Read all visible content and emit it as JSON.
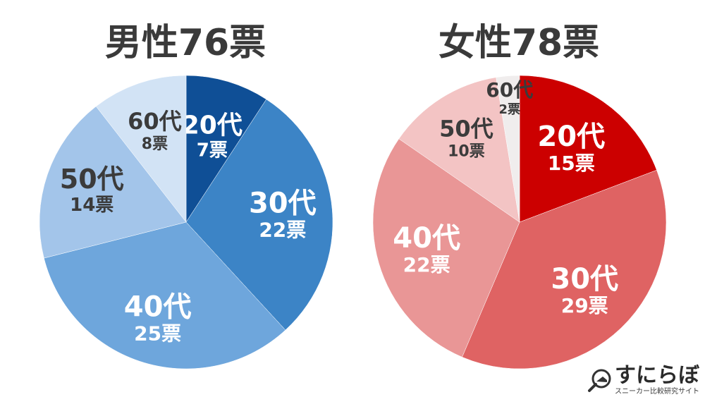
{
  "chart_data": [
    {
      "type": "pie",
      "title": "男性76票",
      "slices": [
        {
          "label": "20代",
          "votes": "7票",
          "value": 7,
          "color": "#0f4f96"
        },
        {
          "label": "30代",
          "votes": "22票",
          "value": 22,
          "color": "#3c84c6"
        },
        {
          "label": "40代",
          "votes": "25票",
          "value": 25,
          "color": "#6ea6dc"
        },
        {
          "label": "50代",
          "votes": "14票",
          "value": 14,
          "color": "#a3c5ea"
        },
        {
          "label": "60代",
          "votes": "8票",
          "value": 8,
          "color": "#d2e3f5"
        }
      ]
    },
    {
      "type": "pie",
      "title": "女性78票",
      "slices": [
        {
          "label": "20代",
          "votes": "15票",
          "value": 15,
          "color": "#cc0000"
        },
        {
          "label": "30代",
          "votes": "29票",
          "value": 29,
          "color": "#df6363"
        },
        {
          "label": "40代",
          "votes": "22票",
          "value": 22,
          "color": "#e99696"
        },
        {
          "label": "50代",
          "votes": "10票",
          "value": 10,
          "color": "#f3c4c4"
        },
        {
          "label": "60代",
          "votes": "2票",
          "value": 2,
          "color": "#f0eded"
        }
      ]
    }
  ],
  "logo": {
    "name": "すにらぼ",
    "tagline": "スニーカー比較研究サイト",
    "icon": "magnifier-shoe-icon"
  }
}
